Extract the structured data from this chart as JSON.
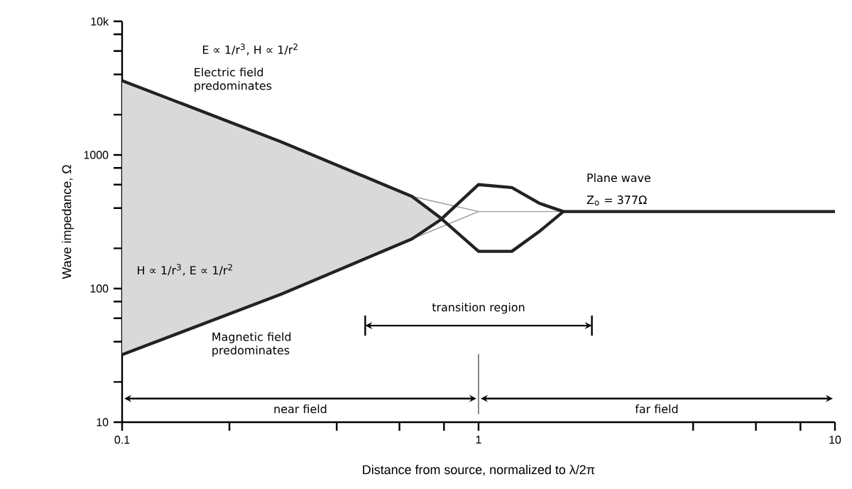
{
  "chart_data": {
    "type": "line",
    "xlabel": "Distance from source, normalized to λ/2π",
    "ylabel": "Wave impedance, Ω",
    "log": "xy",
    "grid": false,
    "marker": "none",
    "line_style": "solid",
    "xlim": [
      0.1,
      10
    ],
    "ylim": [
      10,
      10000
    ],
    "xticks": [
      0.1,
      {
        "value": 0.2,
        "label": null
      },
      {
        "value": 0.4,
        "label": null
      },
      {
        "value": 0.6,
        "label": null
      },
      {
        "value": 0.8,
        "label": null
      },
      1,
      {
        "value": 4,
        "label": null
      },
      {
        "value": 6,
        "label": null
      },
      {
        "value": 8,
        "label": null
      },
      10
    ],
    "yticks": [
      10,
      {
        "value": 20,
        "label": null
      },
      {
        "value": 40,
        "label": null
      },
      {
        "value": 60,
        "label": null
      },
      {
        "value": 80,
        "label": null
      },
      100,
      {
        "value": 200,
        "label": null
      },
      {
        "value": 400,
        "label": null
      },
      {
        "value": 600,
        "label": null
      },
      {
        "value": 800,
        "label": null
      },
      1000,
      {
        "value": 2000,
        "label": null
      },
      {
        "value": 4000,
        "label": null
      },
      {
        "value": 6000,
        "label": null
      },
      {
        "value": 8000,
        "label": null
      },
      {
        "value": 10000,
        "label": "10k"
      }
    ],
    "series": [
      {
        "color": "#999999",
        "x": [
          0.65,
          1,
          1.73
        ],
        "values": [
          490,
          377,
          377
        ]
      },
      {
        "color": "#999999",
        "x": [
          0.65,
          1
        ],
        "values": [
          235,
          377
        ]
      },
      {
        "color": "#222222",
        "x": [
          0.1,
          0.28,
          0.65,
          0.78,
          1.0,
          1.24,
          1.48,
          1.73,
          10
        ],
        "values": [
          3600,
          1250,
          490,
          340,
          190,
          190,
          267,
          377,
          377
        ],
        "lower": [
          32,
          91,
          235,
          325,
          null,
          null,
          null,
          null,
          null
        ],
        "upper": [
          3600,
          1250,
          490,
          340,
          null,
          null,
          null,
          null,
          null
        ]
      },
      {
        "color": "#222222",
        "x": [
          0.1,
          0.28,
          0.65,
          0.78,
          1.0,
          1.24,
          1.48,
          1.73
        ],
        "values": [
          32,
          91,
          235,
          325,
          600,
          570,
          435,
          377
        ]
      }
    ],
    "ref_lines": [
      {
        "axis": "x",
        "value": 1,
        "color": "#888888"
      }
    ],
    "annotations": [
      "E ∝ 1/r$^{3}$, H ∝ 1/r$^{2}$",
      "Electric field predominates",
      "H ∝ 1/r$^{3}$, E ∝ 1/r$^{2}$",
      "Magnetic field predominates",
      "Plane wave",
      "Z$_{o}$ = 377Ω",
      "transition region",
      "near field",
      "far field"
    ]
  }
}
